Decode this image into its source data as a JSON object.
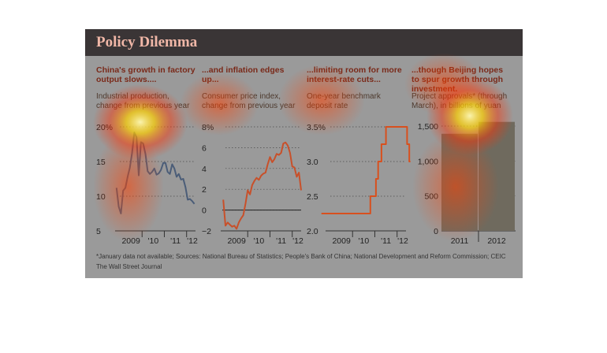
{
  "figure": {
    "title": "Policy Dilemma",
    "footnote": "*January data not available; Sources: National Bureau of Statistics; People's Bank of China; National Development and Reform Commission; CEIC",
    "credit": "The Wall Street Journal"
  },
  "colors": {
    "banner": "#3a3536",
    "title": "#f0b7a7",
    "industrial_line": "#4b5d78",
    "cpi_line": "#c8502a",
    "rate_line": "#d8501e",
    "bars": "#6f6a5e",
    "heatmap_hot": "#fff8b0",
    "heatmap_mid": "#ff3000"
  },
  "chart_data": [
    {
      "type": "line",
      "heading": "China's growth in factory output slows....",
      "subtitle": "Industrial production, change from previous year",
      "ylim": [
        5,
        20
      ],
      "yticks": [
        5,
        10,
        15,
        20
      ],
      "ytick_labels": [
        "5",
        "10",
        "15",
        "20%"
      ],
      "xlim": [
        2009.0,
        2012.4
      ],
      "xticks": [
        2009,
        2010,
        2011,
        2012
      ],
      "xtick_labels": [
        "2009",
        "'10",
        "'11",
        "'12"
      ],
      "grid": true,
      "series": [
        {
          "x": [
            2008.85,
            2008.95,
            2009.05,
            2009.15,
            2009.25,
            2009.35,
            2009.45,
            2009.55,
            2009.65,
            2009.75,
            2009.85,
            2009.95,
            2010.05,
            2010.15,
            2010.25,
            2010.35,
            2010.45,
            2010.55,
            2010.65,
            2010.75,
            2010.85,
            2010.95,
            2011.05,
            2011.15,
            2011.25,
            2011.35,
            2011.45,
            2011.55,
            2011.65,
            2011.75,
            2011.85,
            2011.95,
            2012.05,
            2012.15,
            2012.25,
            2012.35
          ],
          "y": [
            11.2,
            8.5,
            7.5,
            10.8,
            11.2,
            12.8,
            14.1,
            16.2,
            19.2,
            18.5,
            13.0,
            17.8,
            17.6,
            16.1,
            13.6,
            13.2,
            13.5,
            14.0,
            13.1,
            13.3,
            13.8,
            14.8,
            14.8,
            13.5,
            13.2,
            14.6,
            14.0,
            12.8,
            13.2,
            12.4,
            12.5,
            11.3,
            9.5,
            9.6,
            9.3,
            8.9
          ]
        }
      ]
    },
    {
      "type": "line",
      "heading": "...and inflation edges up...",
      "subtitle": "Consumer price index, change from previous year",
      "ylim": [
        -2,
        8
      ],
      "yticks": [
        -2,
        0,
        2,
        4,
        6,
        8
      ],
      "ytick_labels": [
        "−2",
        "0",
        "2",
        "4",
        "6",
        "8%"
      ],
      "xlim": [
        2009.0,
        2012.4
      ],
      "xticks": [
        2009,
        2010,
        2011,
        2012
      ],
      "xtick_labels": [
        "2009",
        "'10",
        "'11",
        "'12"
      ],
      "grid": true,
      "zero_line": true,
      "series": [
        {
          "x": [
            2008.9,
            2009.0,
            2009.1,
            2009.2,
            2009.3,
            2009.4,
            2009.5,
            2009.6,
            2009.7,
            2009.8,
            2009.9,
            2010.0,
            2010.1,
            2010.2,
            2010.3,
            2010.4,
            2010.5,
            2010.6,
            2010.7,
            2010.8,
            2010.9,
            2011.0,
            2011.1,
            2011.2,
            2011.3,
            2011.4,
            2011.5,
            2011.6,
            2011.7,
            2011.8,
            2011.9,
            2012.0,
            2012.1,
            2012.2,
            2012.3,
            2012.4
          ],
          "y": [
            1.0,
            -1.5,
            -1.2,
            -1.4,
            -1.6,
            -1.5,
            -1.8,
            -1.2,
            -0.8,
            -0.5,
            0.6,
            1.9,
            1.5,
            2.4,
            2.8,
            3.1,
            2.9,
            3.3,
            3.5,
            3.6,
            4.4,
            5.1,
            4.6,
            4.9,
            5.4,
            5.3,
            5.5,
            6.4,
            6.5,
            6.2,
            5.5,
            4.2,
            4.1,
            3.2,
            3.6,
            1.9
          ]
        }
      ]
    },
    {
      "type": "line",
      "heading": "...limiting room for more interest-rate cuts...",
      "subtitle": "One-year benchmark deposit rate",
      "ylim": [
        2.0,
        3.5
      ],
      "yticks": [
        2.0,
        2.5,
        3.0,
        3.5
      ],
      "ytick_labels": [
        "2.0",
        "2.5",
        "3.0",
        "3.5%"
      ],
      "xlim": [
        2009.0,
        2012.4
      ],
      "xticks": [
        2009,
        2010,
        2011,
        2012
      ],
      "xtick_labels": [
        "2009",
        "'10",
        "'11",
        "'12"
      ],
      "grid": true,
      "step": true,
      "series": [
        {
          "x": [
            2008.6,
            2010.8,
            2010.8,
            2011.05,
            2011.05,
            2011.15,
            2011.15,
            2011.3,
            2011.3,
            2011.5,
            2011.5,
            2012.45,
            2012.45,
            2012.55,
            2012.55,
            2012.6
          ],
          "y": [
            2.25,
            2.25,
            2.5,
            2.5,
            2.75,
            2.75,
            3.0,
            3.0,
            3.25,
            3.25,
            3.5,
            3.5,
            3.25,
            3.25,
            3.0,
            3.0
          ]
        }
      ]
    },
    {
      "type": "bar",
      "heading": "...though Beijing hopes to spur growth through investment.",
      "subtitle": "Project approvals* (through March), in billions of yuan",
      "categories": [
        "2011",
        "2012"
      ],
      "values": [
        1390,
        1560
      ],
      "ylim": [
        0,
        1500
      ],
      "yticks": [
        0,
        500,
        1000,
        1500
      ],
      "ytick_labels": [
        "0",
        "500",
        "1,000",
        "1,500"
      ],
      "grid": true
    }
  ]
}
